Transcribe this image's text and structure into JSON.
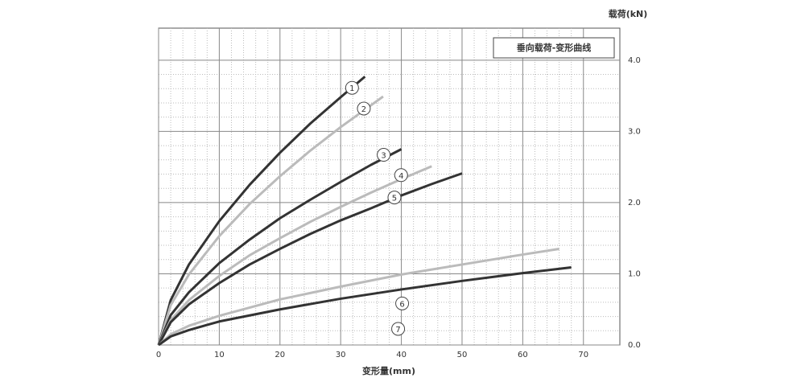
{
  "chart_data": {
    "type": "line",
    "title": "垂向载荷-变形曲线",
    "x_label": "变形量(mm)",
    "y_label": "载荷(kN)",
    "xlim": [
      0,
      76
    ],
    "ylim": [
      0,
      4.45
    ],
    "xticks": [
      0,
      10,
      20,
      30,
      40,
      50,
      60,
      70
    ],
    "yticks": [
      {
        "value": 0,
        "label": "0.0"
      },
      {
        "value": 1,
        "label": "1.0"
      },
      {
        "value": 2,
        "label": "2.0"
      },
      {
        "value": 3,
        "label": "3.0"
      },
      {
        "value": 4,
        "label": "4.0"
      }
    ],
    "y_axis_side": "right",
    "grid": true,
    "series": [
      {
        "name": "1",
        "color": "#333333",
        "x": [
          0,
          2,
          5,
          10,
          15,
          20,
          25,
          30,
          34
        ],
        "values": [
          0,
          0.63,
          1.13,
          1.74,
          2.25,
          2.7,
          3.11,
          3.48,
          3.77
        ]
      },
      {
        "name": "2",
        "color": "#bbbbbb",
        "x": [
          0,
          2,
          5,
          10,
          15,
          20,
          25,
          30,
          37
        ],
        "values": [
          0,
          0.56,
          0.99,
          1.53,
          1.98,
          2.37,
          2.73,
          3.06,
          3.49
        ]
      },
      {
        "name": "3",
        "color": "#333333",
        "x": [
          0,
          2,
          5,
          10,
          15,
          20,
          25,
          30,
          35,
          40
        ],
        "values": [
          0,
          0.42,
          0.74,
          1.15,
          1.48,
          1.78,
          2.04,
          2.29,
          2.53,
          2.75
        ]
      },
      {
        "name": "4",
        "color": "#bbbbbb",
        "x": [
          0,
          2,
          5,
          10,
          15,
          20,
          25,
          30,
          35,
          40,
          45
        ],
        "values": [
          0,
          0.35,
          0.63,
          0.97,
          1.26,
          1.5,
          1.73,
          1.94,
          2.14,
          2.33,
          2.51
        ]
      },
      {
        "name": "5",
        "color": "#333333",
        "x": [
          0,
          2,
          5,
          10,
          15,
          20,
          25,
          30,
          35,
          40,
          45,
          50
        ],
        "values": [
          0,
          0.32,
          0.57,
          0.87,
          1.13,
          1.35,
          1.56,
          1.75,
          1.92,
          2.1,
          2.26,
          2.41
        ]
      },
      {
        "name": "6",
        "color": "#bbbbbb",
        "x": [
          0,
          2,
          5,
          10,
          20,
          30,
          40,
          50,
          60,
          66
        ],
        "values": [
          0,
          0.15,
          0.27,
          0.41,
          0.64,
          0.82,
          0.99,
          1.13,
          1.27,
          1.35
        ]
      },
      {
        "name": "7",
        "color": "#333333",
        "x": [
          0,
          2,
          5,
          10,
          20,
          30,
          40,
          50,
          60,
          68
        ],
        "values": [
          0,
          0.12,
          0.21,
          0.33,
          0.5,
          0.65,
          0.78,
          0.9,
          1.01,
          1.09
        ]
      }
    ]
  }
}
